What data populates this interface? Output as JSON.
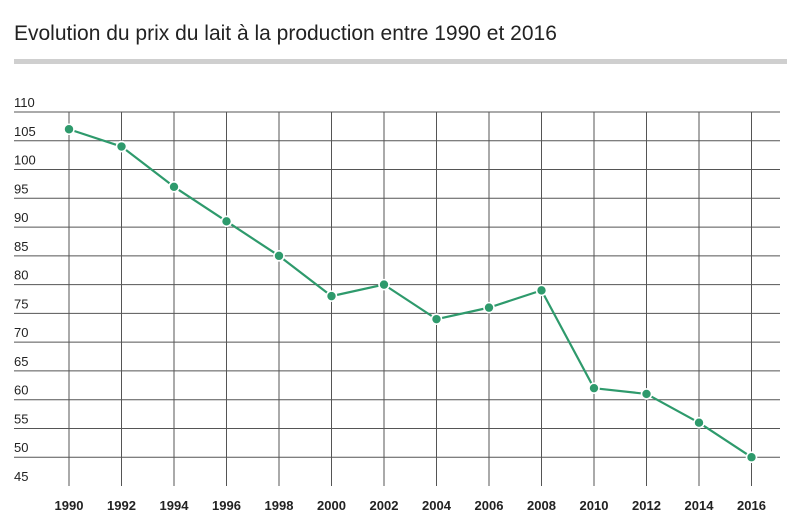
{
  "chart_data": {
    "type": "line",
    "title": "Evolution du prix du lait à la production entre 1990 et 2016",
    "xlabel": "",
    "ylabel": "",
    "x": [
      1990,
      1992,
      1994,
      1996,
      1998,
      2000,
      2002,
      2004,
      2006,
      2008,
      2010,
      2012,
      2014,
      2016
    ],
    "series": [
      {
        "values": [
          107,
          104,
          97,
          91,
          85,
          78,
          80,
          74,
          76,
          79,
          62,
          61,
          56,
          50
        ]
      }
    ],
    "ylim": [
      45,
      110
    ],
    "yticks": [
      45,
      50,
      55,
      60,
      65,
      70,
      75,
      80,
      85,
      90,
      95,
      100,
      105,
      110
    ],
    "grid": true,
    "legend": "none"
  },
  "colors": {
    "series_line": "#2e9a6c",
    "marker_fill": "#2e9a6c",
    "marker_stroke": "#ffffff",
    "grid": "#555555",
    "title_rule": "#cfcfcf"
  }
}
